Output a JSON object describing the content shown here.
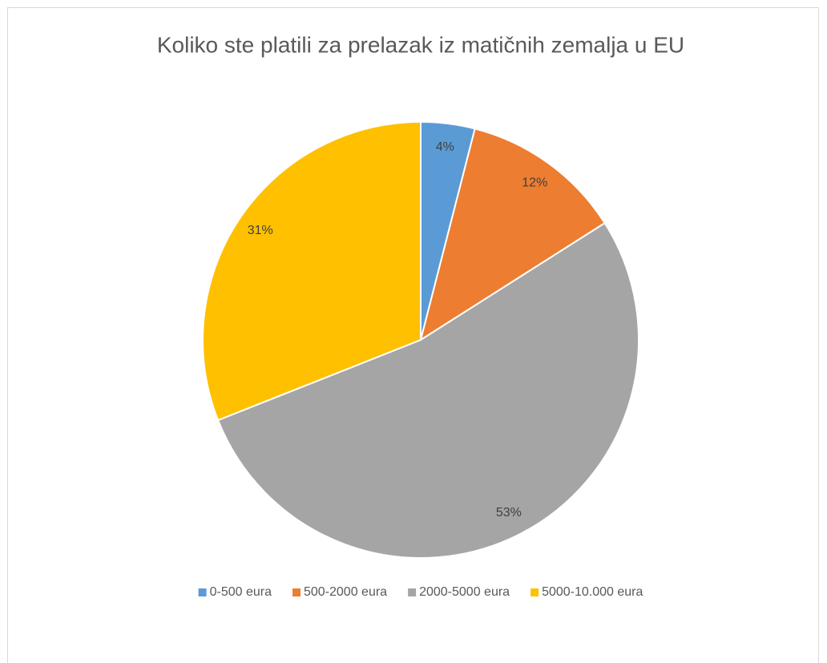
{
  "chart_data": {
    "type": "pie",
    "title": "Koliko ste platili za prelazak iz matičnih zemalja u EU",
    "categories": [
      "0-500 eura",
      "500-2000 eura",
      "2000-5000 eura",
      "5000-10.000 eura"
    ],
    "values": [
      4,
      12,
      53,
      31
    ],
    "value_labels": [
      "4%",
      "12%",
      "53%",
      "31%"
    ],
    "colors": [
      "#5b9bd5",
      "#ed7d31",
      "#a5a5a5",
      "#ffc000"
    ],
    "legend": "bottom"
  }
}
